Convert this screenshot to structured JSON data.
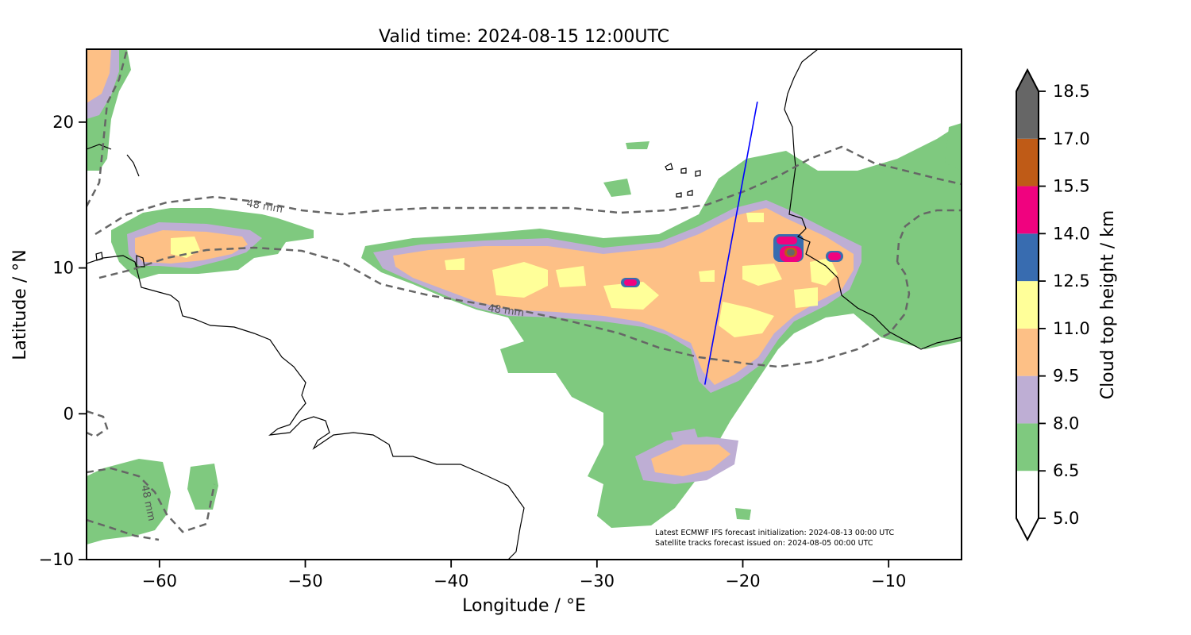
{
  "title": "Valid time: 2024-08-15 12:00UTC",
  "axes": {
    "xlabel": "Longitude / °E",
    "ylabel": "Latitude / °N",
    "xlim": [
      -65,
      -5
    ],
    "ylim": [
      -10,
      25
    ],
    "xticks": [
      {
        "value": -60,
        "label": "−60"
      },
      {
        "value": -50,
        "label": "−50"
      },
      {
        "value": -40,
        "label": "−40"
      },
      {
        "value": -30,
        "label": "−30"
      },
      {
        "value": -20,
        "label": "−20"
      },
      {
        "value": -10,
        "label": "−10"
      }
    ],
    "yticks": [
      {
        "value": -10,
        "label": "−10"
      },
      {
        "value": 0,
        "label": "0"
      },
      {
        "value": 10,
        "label": "10"
      },
      {
        "value": 20,
        "label": "20"
      }
    ]
  },
  "colorbar": {
    "label": "Cloud top height / km",
    "extend": "both",
    "ticks": [
      "5.0",
      "6.5",
      "8.0",
      "9.5",
      "11.0",
      "12.5",
      "14.0",
      "15.5",
      "17.0",
      "18.5"
    ],
    "colors": [
      "#ffffff",
      "#7fc97f",
      "#beaed4",
      "#fdc086",
      "#ffff99",
      "#386cb0",
      "#f0027f",
      "#bf5b17",
      "#666666"
    ]
  },
  "contour": {
    "label": "48 mm",
    "color": "#666666",
    "style": "dashed"
  },
  "satellite_track": {
    "color": "#0000ff",
    "start": {
      "lon": -22.6,
      "lat": 2.0
    },
    "end": {
      "lon": -19.0,
      "lat": 21.4
    }
  },
  "annotations": {
    "line1": "Latest ECMWF IFS forecast initialization: 2024-08-13 00:00 UTC",
    "line2": "Satellite tracks forecast issued on: 2024-08-05 00:00 UTC"
  },
  "chart_data": {
    "type": "map",
    "title": "Valid time: 2024-08-15 12:00UTC",
    "xlabel": "Longitude / °E",
    "ylabel": "Latitude / °N",
    "xlim": [
      -65,
      -5
    ],
    "ylim": [
      -10,
      25
    ],
    "variable": "Cloud top height / km",
    "levels": [
      5.0,
      6.5,
      8.0,
      9.5,
      11.0,
      12.5,
      14.0,
      15.5,
      17.0,
      18.5
    ],
    "contour_label": "48 mm",
    "track": {
      "lon": [
        -22.6,
        -19.0
      ],
      "lat": [
        2.0,
        21.4
      ]
    }
  }
}
